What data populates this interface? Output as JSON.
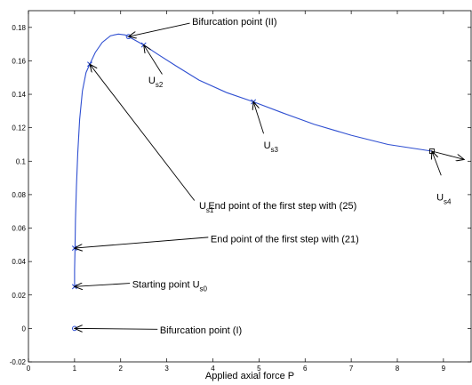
{
  "chart_data": {
    "type": "line",
    "xlabel": "Applied axial force P",
    "ylabel": "",
    "title": "",
    "xlim": [
      0,
      9.6
    ],
    "ylim": [
      -0.02,
      0.19
    ],
    "xticks": [
      0,
      1,
      2,
      3,
      4,
      5,
      6,
      7,
      8,
      9
    ],
    "yticks": [
      -0.02,
      0,
      0.02,
      0.04,
      0.06,
      0.08,
      0.1,
      0.12,
      0.14,
      0.16,
      0.18
    ],
    "ytick_labels": [
      "-0.02",
      "0",
      "0.02",
      "0.04",
      "0.06",
      "0.08",
      "0.1",
      "0.12",
      "0.14",
      "0.16",
      "0.18"
    ],
    "grid": false,
    "curve_color": "#2f4fd1",
    "series": [
      {
        "x": [
          1.0,
          1.0,
          1.01,
          1.02,
          1.04,
          1.07,
          1.11,
          1.17,
          1.25,
          1.33,
          1.45,
          1.6,
          1.78,
          1.95,
          2.1,
          2.17,
          2.3,
          2.5,
          2.8,
          3.2,
          3.7,
          4.3,
          4.88,
          5.5,
          6.2,
          7.0,
          7.8,
          8.75
        ],
        "y": [
          0.025,
          0.035,
          0.048,
          0.065,
          0.085,
          0.105,
          0.125,
          0.142,
          0.153,
          0.158,
          0.165,
          0.171,
          0.175,
          0.176,
          0.1755,
          0.1745,
          0.1725,
          0.1695,
          0.164,
          0.157,
          0.1485,
          0.141,
          0.1355,
          0.129,
          0.122,
          0.1155,
          0.11,
          0.106
        ]
      }
    ],
    "markers": [
      {
        "shape": "circle",
        "x": 1.0,
        "y": 0.0
      },
      {
        "shape": "x",
        "x": 1.0,
        "y": 0.025
      },
      {
        "shape": "x",
        "x": 1.0,
        "y": 0.048
      },
      {
        "shape": "x",
        "x": 1.33,
        "y": 0.158
      },
      {
        "shape": "circle",
        "x": 2.17,
        "y": 0.1745
      },
      {
        "shape": "x",
        "x": 2.5,
        "y": 0.1695
      },
      {
        "shape": "x",
        "x": 4.88,
        "y": 0.1355
      },
      {
        "shape": "square",
        "x": 8.75,
        "y": 0.106
      }
    ],
    "open_arrow": {
      "from": [
        8.75,
        0.106
      ],
      "to": [
        9.45,
        0.101
      ]
    },
    "annotations": [
      {
        "text": "Bifurcation point (II)",
        "sub": "",
        "tail": [
          3.5,
          0.1825
        ],
        "head": [
          2.17,
          0.1745
        ],
        "text_at": [
          3.55,
          0.1815
        ]
      },
      {
        "text": "U",
        "sub": "s2",
        "tail": [
          2.9,
          0.152
        ],
        "head": [
          2.5,
          0.1695
        ],
        "text_at": [
          2.6,
          0.1465
        ]
      },
      {
        "text": "U",
        "sub": "s3",
        "tail": [
          5.1,
          0.1165
        ],
        "head": [
          4.88,
          0.1355
        ],
        "text_at": [
          5.1,
          0.1075
        ]
      },
      {
        "text": "U",
        "sub": "s4",
        "tail": [
          8.95,
          0.0915
        ],
        "head": [
          8.75,
          0.106
        ],
        "text_at": [
          8.85,
          0.0765
        ]
      },
      {
        "text": "U",
        "sub": "s1",
        "tail": [
          3.6,
          0.0765
        ],
        "head": [
          1.33,
          0.158
        ],
        "text_at": [
          3.7,
          0.0715
        ]
      },
      {
        "text": "End point of the first step with (25)",
        "sub": "",
        "tail": null,
        "head": null,
        "text_at": [
          3.9,
          0.0715
        ]
      },
      {
        "text": "End point of the first step with (21)",
        "sub": "",
        "tail": [
          3.9,
          0.0545
        ],
        "head": [
          1.0,
          0.048
        ],
        "text_at": [
          3.95,
          0.0515
        ]
      },
      {
        "text": "Starting point U",
        "sub": "s0",
        "tail": [
          2.2,
          0.027
        ],
        "head": [
          1.0,
          0.025
        ],
        "text_at": [
          2.25,
          0.0245
        ]
      },
      {
        "text": "Bifurcation point (I)",
        "sub": "",
        "tail": [
          2.8,
          -0.0005
        ],
        "head": [
          1.0,
          0.0
        ],
        "text_at": [
          2.85,
          -0.003
        ]
      }
    ]
  }
}
